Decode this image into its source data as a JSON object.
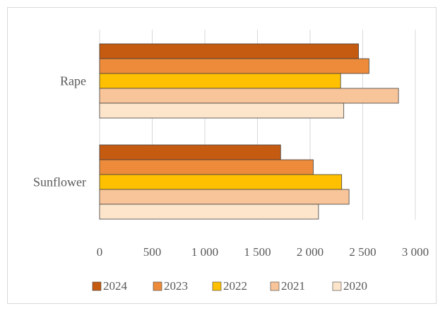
{
  "chart_data": {
    "type": "bar",
    "orientation": "horizontal",
    "title": "",
    "xlabel": "",
    "ylabel": "",
    "categories": [
      "Rape",
      "Sunflower"
    ],
    "xlim": [
      0,
      3000
    ],
    "x_ticks": [
      0,
      500,
      1000,
      1500,
      2000,
      2500,
      3000
    ],
    "x_tick_labels": [
      "0",
      "500",
      "1 000",
      "1 500",
      "2 000",
      "2 500",
      "3 000"
    ],
    "grid": "vertical",
    "legend_position": "bottom",
    "series": [
      {
        "name": "2024",
        "color": "#c55a11",
        "values": [
          2460,
          1720
        ]
      },
      {
        "name": "2023",
        "color": "#ed8b3a",
        "values": [
          2560,
          2030
        ]
      },
      {
        "name": "2022",
        "color": "#ffc000",
        "values": [
          2290,
          2300
        ]
      },
      {
        "name": "2021",
        "color": "#f8c49a",
        "values": [
          2840,
          2370
        ]
      },
      {
        "name": "2020",
        "color": "#fde5cc",
        "values": [
          2320,
          2080
        ]
      }
    ]
  }
}
